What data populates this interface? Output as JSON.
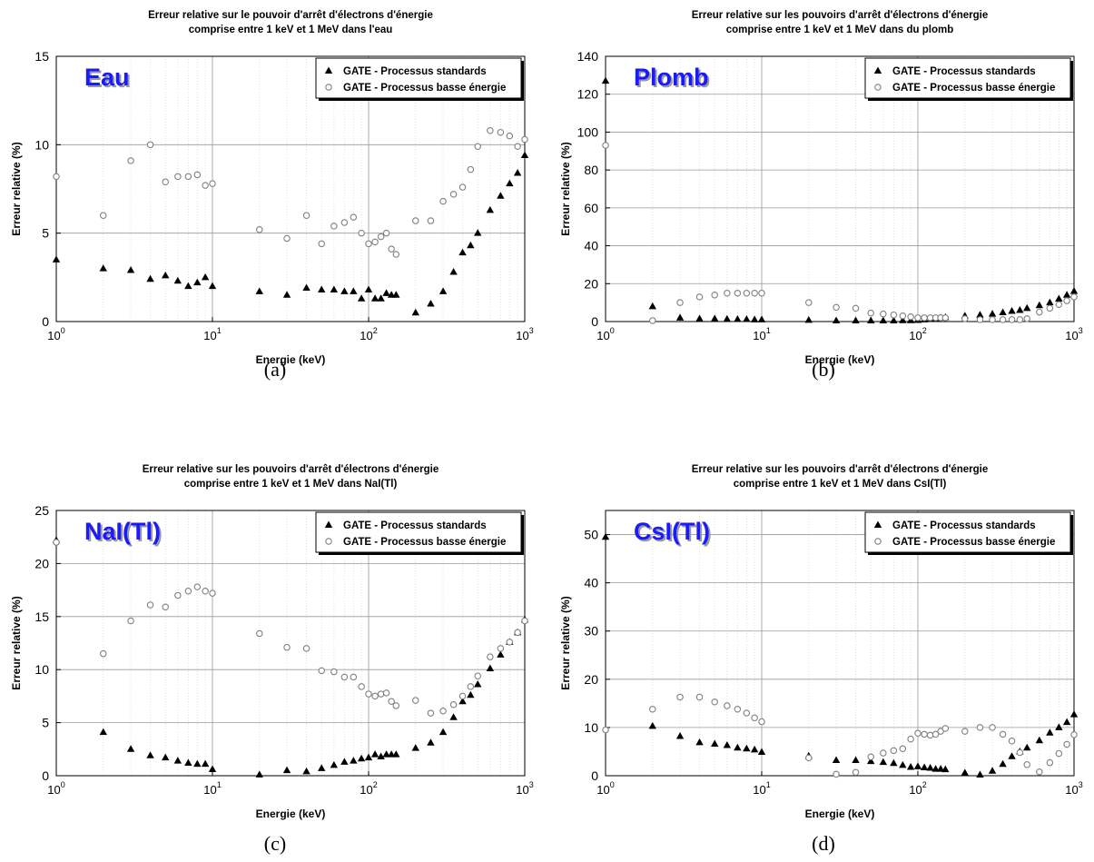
{
  "figure": {
    "captions": [
      "(a)",
      "(b)",
      "(c)",
      "(d)"
    ]
  },
  "chart_data": [
    {
      "type": "scatter",
      "panel": "a",
      "title_lines": [
        "Erreur relative sur le pouvoir d'arrêt d'électrons d'énergie",
        "comprise entre 1 keV et 1 MeV dans l'eau"
      ],
      "material_label": "Eau",
      "label_color": "#1a1aff",
      "xlabel": "Energie (keV)",
      "ylabel": "Erreur relative (%)",
      "xscale": "log",
      "xlim": [
        1,
        1000
      ],
      "ylim": [
        0,
        15
      ],
      "yticks": [
        0,
        5,
        10,
        15
      ],
      "xtick_labels": [
        {
          "base": "10",
          "exp": "0"
        },
        {
          "base": "10",
          "exp": "1"
        },
        {
          "base": "10",
          "exp": "2"
        },
        {
          "base": "10",
          "exp": "3"
        }
      ],
      "grid": true,
      "legend_position": "top-right",
      "series": [
        {
          "name": "GATE - Processus standards",
          "marker": "filled-triangle",
          "color": "#000000",
          "x": [
            1,
            2,
            3,
            4,
            5,
            6,
            7,
            8,
            9,
            10,
            20,
            30,
            40,
            50,
            60,
            70,
            80,
            90,
            100,
            110,
            120,
            130,
            140,
            150,
            200,
            250,
            300,
            350,
            400,
            450,
            500,
            600,
            700,
            800,
            900,
            1000
          ],
          "y": [
            3.5,
            3.0,
            2.9,
            2.4,
            2.6,
            2.3,
            2.0,
            2.2,
            2.5,
            2.0,
            1.7,
            1.5,
            1.9,
            1.8,
            1.8,
            1.7,
            1.7,
            1.3,
            1.8,
            1.3,
            1.3,
            1.6,
            1.5,
            1.5,
            0.5,
            1.0,
            1.7,
            2.8,
            3.9,
            4.3,
            5.0,
            6.3,
            7.1,
            7.8,
            8.4,
            9.4
          ]
        },
        {
          "name": "GATE - Processus basse énergie",
          "marker": "open-circle",
          "color": "#808080",
          "x": [
            1,
            2,
            3,
            4,
            5,
            6,
            7,
            8,
            9,
            10,
            20,
            30,
            40,
            50,
            60,
            70,
            80,
            90,
            100,
            110,
            120,
            130,
            140,
            150,
            200,
            250,
            300,
            350,
            400,
            450,
            500,
            600,
            700,
            800,
            900,
            1000
          ],
          "y": [
            8.2,
            6.0,
            9.1,
            10.0,
            7.9,
            8.2,
            8.2,
            8.3,
            7.7,
            7.8,
            5.2,
            4.7,
            6.0,
            4.4,
            5.4,
            5.6,
            5.9,
            5.0,
            4.4,
            4.5,
            4.8,
            5.0,
            4.1,
            3.8,
            5.7,
            5.7,
            6.8,
            7.2,
            7.6,
            8.6,
            9.9,
            10.8,
            10.7,
            10.5,
            9.9,
            10.3
          ]
        }
      ]
    },
    {
      "type": "scatter",
      "panel": "b",
      "title_lines": [
        "Erreur relative sur les pouvoirs d'arrêt d'électrons d'énergie",
        "comprise entre 1 keV et 1 MeV dans du plomb"
      ],
      "material_label": "Plomb",
      "label_color": "#1a1aff",
      "xlabel": "Energie (keV)",
      "ylabel": "Erreur relative (%)",
      "xscale": "log",
      "xlim": [
        1,
        1000
      ],
      "ylim": [
        0,
        140
      ],
      "yticks": [
        0,
        20,
        40,
        60,
        80,
        100,
        120,
        140
      ],
      "xtick_labels": [
        {
          "base": "10",
          "exp": "0"
        },
        {
          "base": "10",
          "exp": "1"
        },
        {
          "base": "10",
          "exp": "2"
        },
        {
          "base": "10",
          "exp": "3"
        }
      ],
      "grid": true,
      "legend_position": "top-right",
      "series": [
        {
          "name": "GATE - Processus standards",
          "marker": "filled-triangle",
          "color": "#000000",
          "x": [
            1,
            2,
            3,
            4,
            5,
            6,
            7,
            8,
            9,
            10,
            20,
            30,
            40,
            50,
            60,
            70,
            80,
            90,
            100,
            110,
            120,
            130,
            140,
            150,
            200,
            250,
            300,
            350,
            400,
            450,
            500,
            600,
            700,
            800,
            900,
            1000
          ],
          "y": [
            127,
            8,
            2,
            1.5,
            1.5,
            1.3,
            1.2,
            1.2,
            1.0,
            1.0,
            0.8,
            0.5,
            0.5,
            0.5,
            0.5,
            0.5,
            0.6,
            0.6,
            0.7,
            1.0,
            1.2,
            1.5,
            2.0,
            2.2,
            3.0,
            3.5,
            4.0,
            4.8,
            5.5,
            6.0,
            7.0,
            8.5,
            10.0,
            12.0,
            14.0,
            16.0
          ]
        },
        {
          "name": "GATE - Processus basse énergie",
          "marker": "open-circle",
          "color": "#808080",
          "x": [
            1,
            2,
            3,
            4,
            5,
            6,
            7,
            8,
            9,
            10,
            20,
            30,
            40,
            50,
            60,
            70,
            80,
            90,
            100,
            110,
            120,
            130,
            140,
            150,
            200,
            250,
            300,
            350,
            400,
            450,
            500,
            600,
            700,
            800,
            900,
            1000
          ],
          "y": [
            93,
            0.5,
            10,
            13,
            14,
            15,
            15,
            15,
            15,
            15,
            10,
            7.5,
            7,
            4.5,
            4,
            3.5,
            3,
            2.5,
            2,
            2,
            2,
            2,
            2,
            2,
            1.5,
            1,
            1,
            1,
            1,
            1,
            1.5,
            5,
            7,
            9,
            11,
            13
          ]
        }
      ]
    },
    {
      "type": "scatter",
      "panel": "c",
      "title_lines": [
        "Erreur relative sur les pouvoirs d'arrêt d'électrons d'énergie",
        "comprise entre 1 keV et 1 MeV dans NaI(Tl)"
      ],
      "material_label": "NaI(Tl)",
      "label_color": "#1a1aff",
      "xlabel": "Energie (keV)",
      "ylabel": "Erreur relative (%)",
      "xscale": "log",
      "xlim": [
        1,
        1000
      ],
      "ylim": [
        0,
        25
      ],
      "yticks": [
        0,
        5,
        10,
        15,
        20,
        25
      ],
      "xtick_labels": [
        {
          "base": "10",
          "exp": "0"
        },
        {
          "base": "10",
          "exp": "1"
        },
        {
          "base": "10",
          "exp": "2"
        },
        {
          "base": "10",
          "exp": "3"
        }
      ],
      "grid": true,
      "legend_position": "top-right",
      "series": [
        {
          "name": "GATE - Processus standards",
          "marker": "filled-triangle",
          "color": "#000000",
          "x": [
            1,
            2,
            3,
            4,
            5,
            6,
            7,
            8,
            9,
            10,
            20,
            30,
            40,
            50,
            60,
            70,
            80,
            90,
            100,
            110,
            120,
            130,
            140,
            150,
            200,
            250,
            300,
            350,
            400,
            450,
            500,
            600,
            700,
            800,
            900,
            1000
          ],
          "y": [
            22.2,
            4.1,
            2.5,
            1.9,
            1.7,
            1.4,
            1.2,
            1.1,
            1.1,
            0.6,
            0.1,
            0.5,
            0.4,
            0.7,
            1.0,
            1.3,
            1.4,
            1.6,
            1.7,
            2.0,
            1.8,
            2.0,
            2.0,
            2.0,
            2.6,
            3.1,
            4.1,
            5.5,
            7.0,
            7.6,
            8.6,
            10.1,
            11.4,
            12.6,
            13.5,
            14.7
          ]
        },
        {
          "name": "GATE - Processus basse énergie",
          "marker": "open-circle",
          "color": "#808080",
          "x": [
            1,
            2,
            3,
            4,
            5,
            6,
            7,
            8,
            9,
            10,
            20,
            30,
            40,
            50,
            60,
            70,
            80,
            90,
            100,
            110,
            120,
            130,
            140,
            150,
            200,
            250,
            300,
            350,
            400,
            450,
            500,
            600,
            700,
            800,
            900,
            1000
          ],
          "y": [
            22.0,
            11.5,
            14.6,
            16.1,
            15.9,
            17.0,
            17.4,
            17.8,
            17.4,
            17.2,
            13.4,
            12.1,
            12.0,
            9.9,
            9.8,
            9.3,
            9.3,
            8.4,
            7.7,
            7.5,
            7.7,
            7.8,
            7.0,
            6.6,
            7.1,
            5.9,
            6.1,
            6.7,
            7.5,
            8.4,
            9.4,
            11.2,
            12.0,
            12.6,
            13.5,
            14.6
          ]
        }
      ]
    },
    {
      "type": "scatter",
      "panel": "d",
      "title_lines": [
        "Erreur relative sur les pouvoirs d'arrêt d'électrons d'énergie",
        "comprise entre 1 keV et 1 MeV dans CsI(Tl)"
      ],
      "material_label": "CsI(Tl)",
      "label_color": "#1a1aff",
      "xlabel": "Energie (keV)",
      "ylabel": "Erreur relative (%)",
      "xscale": "log",
      "xlim": [
        1,
        1000
      ],
      "ylim": [
        0,
        55
      ],
      "yticks": [
        0,
        10,
        20,
        30,
        40,
        50
      ],
      "xtick_labels": [
        {
          "base": "10",
          "exp": "0"
        },
        {
          "base": "10",
          "exp": "1"
        },
        {
          "base": "10",
          "exp": "2"
        },
        {
          "base": "10",
          "exp": "3"
        }
      ],
      "grid": true,
      "legend_position": "top-right",
      "series": [
        {
          "name": "GATE - Processus standards",
          "marker": "filled-triangle",
          "color": "#000000",
          "x": [
            1,
            2,
            3,
            4,
            5,
            6,
            7,
            8,
            9,
            10,
            20,
            30,
            40,
            50,
            60,
            70,
            80,
            90,
            100,
            110,
            120,
            130,
            140,
            150,
            200,
            250,
            300,
            350,
            400,
            450,
            500,
            600,
            700,
            800,
            900,
            1000
          ],
          "y": [
            49.5,
            10.3,
            8.2,
            6.9,
            6.6,
            6.3,
            5.8,
            5.6,
            5.4,
            4.9,
            4.1,
            3.2,
            3.2,
            3.0,
            2.8,
            2.6,
            2.2,
            1.8,
            1.9,
            1.7,
            1.6,
            1.4,
            1.4,
            1.3,
            0.6,
            0.2,
            1.0,
            2.4,
            4.0,
            5.0,
            5.8,
            7.3,
            8.9,
            10.0,
            11.1,
            12.7
          ]
        },
        {
          "name": "GATE - Processus basse énergie",
          "marker": "open-circle",
          "color": "#808080",
          "x": [
            1,
            2,
            3,
            4,
            5,
            6,
            7,
            8,
            9,
            10,
            20,
            30,
            40,
            50,
            60,
            70,
            80,
            90,
            100,
            110,
            120,
            130,
            140,
            150,
            200,
            250,
            300,
            350,
            400,
            450,
            500,
            600,
            700,
            800,
            900,
            1000
          ],
          "y": [
            9.5,
            13.8,
            16.3,
            16.3,
            15.3,
            14.5,
            13.8,
            13.0,
            12.0,
            11.2,
            3.7,
            0.3,
            0.7,
            3.9,
            4.7,
            5.2,
            5.6,
            7.6,
            8.8,
            8.6,
            8.4,
            8.6,
            9.2,
            9.8,
            9.2,
            10.0,
            10.0,
            8.6,
            7.2,
            4.8,
            2.3,
            0.8,
            2.7,
            4.6,
            6.5,
            8.5
          ]
        }
      ]
    }
  ]
}
